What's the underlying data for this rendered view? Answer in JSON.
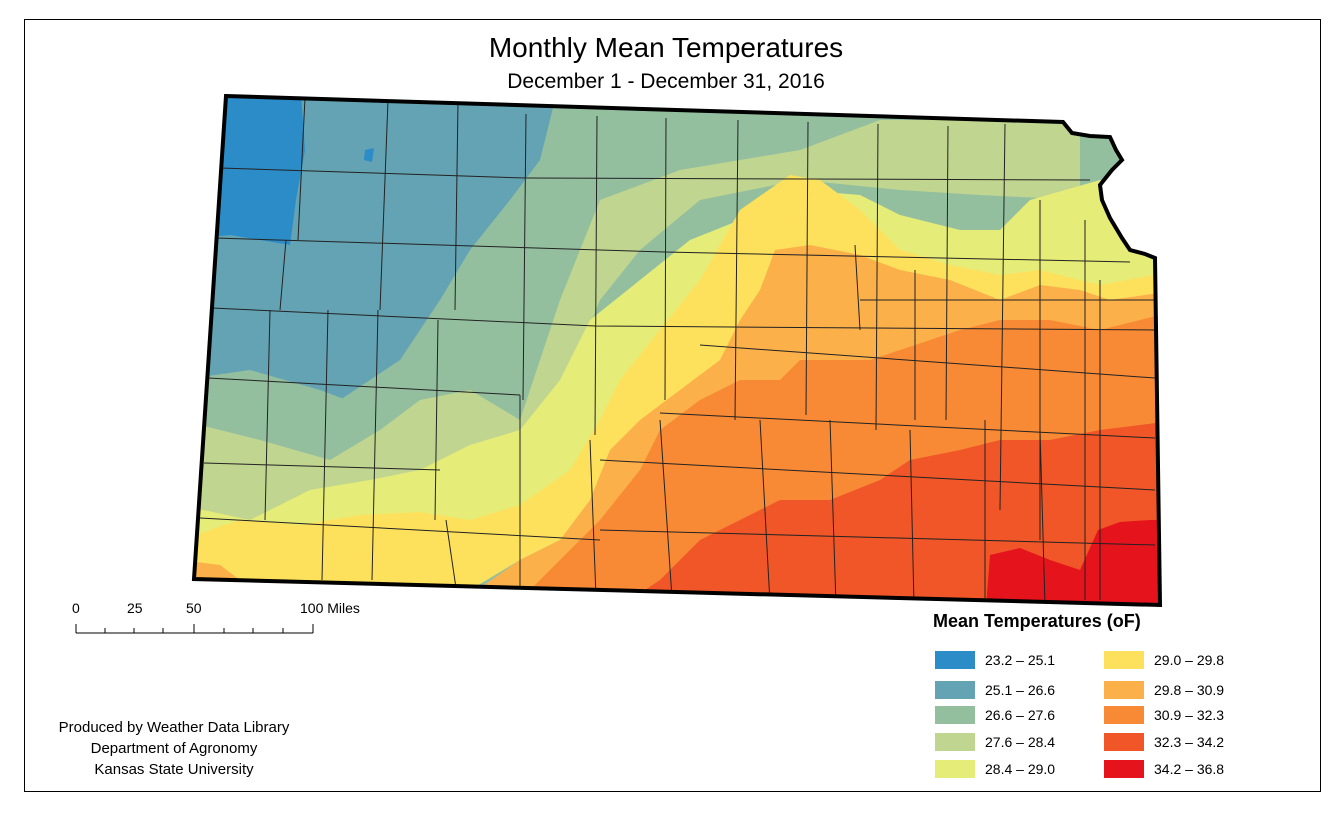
{
  "title": "Monthly Mean Temperatures",
  "subtitle": "December 1 - December 31, 2016",
  "scale_bar": {
    "labels": [
      "0",
      "25",
      "50",
      "100 Miles"
    ]
  },
  "credits": [
    "Produced by Weather Data Library",
    "Department of Agronomy",
    "Kansas State University"
  ],
  "legend": {
    "title": "Mean Temperatures (oF)",
    "items": [
      {
        "label": "23.2 – 25.1",
        "color": "#2b8cc8"
      },
      {
        "label": "25.1 – 26.6",
        "color": "#64a3b3"
      },
      {
        "label": "26.6 – 27.6",
        "color": "#93bf9f"
      },
      {
        "label": "27.6 – 28.4",
        "color": "#c0d58f"
      },
      {
        "label": "28.4 – 29.0",
        "color": "#e6ec78"
      },
      {
        "label": "29.0 – 29.8",
        "color": "#fde15c"
      },
      {
        "label": "29.8 – 30.9",
        "color": "#fbb04a"
      },
      {
        "label": "30.9 – 32.3",
        "color": "#f98a35"
      },
      {
        "label": "32.3 – 34.2",
        "color": "#f05627"
      },
      {
        "label": "34.2 – 36.8",
        "color": "#e5131b"
      }
    ]
  }
}
